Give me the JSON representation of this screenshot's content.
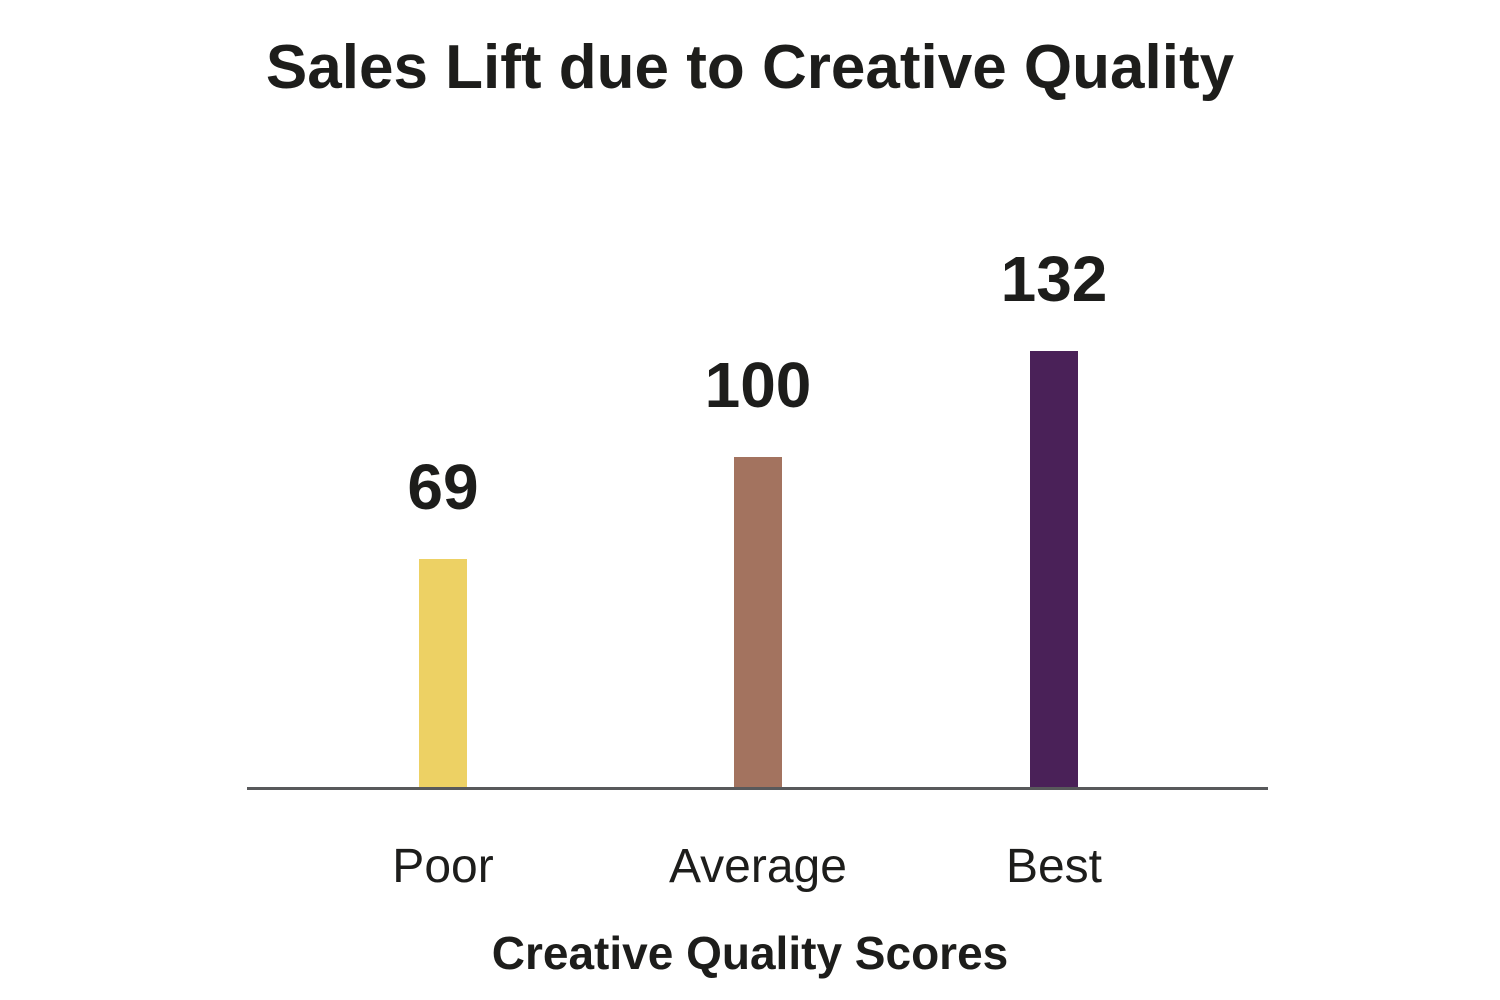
{
  "chart_data": {
    "type": "bar",
    "title": "Sales Lift due to Creative Quality",
    "xlabel": "Creative Quality Scores",
    "ylabel": "",
    "categories": [
      "Poor",
      "Average",
      "Best"
    ],
    "values": [
      69,
      100,
      132
    ],
    "bar_colors": [
      "#edd164",
      "#a3735f",
      "#4a2158"
    ],
    "value_labels": [
      "69",
      "100",
      "132"
    ],
    "ylim": [
      0,
      140
    ],
    "grid": false,
    "legend": false,
    "axis_line_color": "#58595b",
    "text_color": "#1d1d1b",
    "background_color": "#ffffff"
  }
}
